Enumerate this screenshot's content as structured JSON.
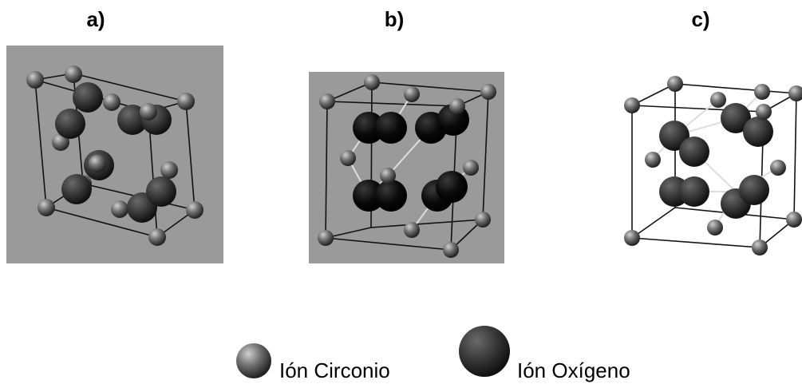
{
  "panels": [
    {
      "label": "a)"
    },
    {
      "label": "b)"
    },
    {
      "label": "c)"
    }
  ],
  "legend": [
    {
      "label": "Ión Circonio"
    },
    {
      "label": "Ión Oxígeno"
    }
  ]
}
